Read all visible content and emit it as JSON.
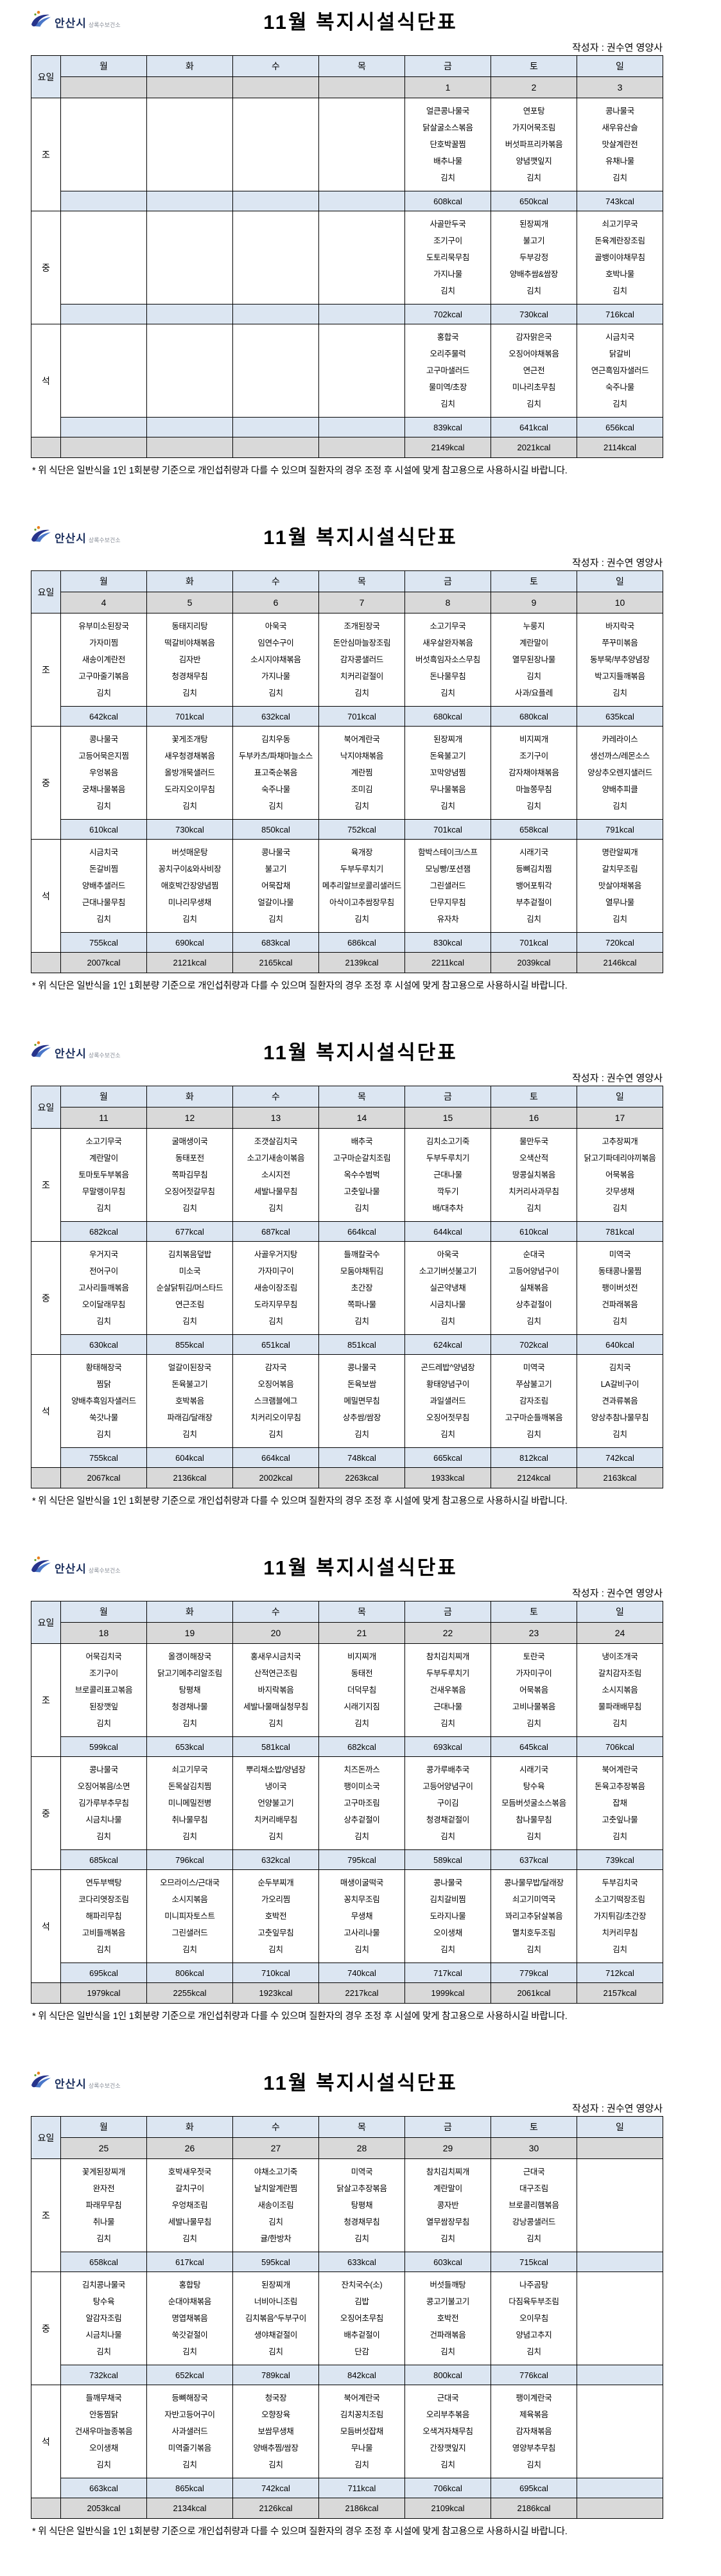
{
  "page": {
    "logo_city": "안산시",
    "logo_sub": "상록수보건소",
    "title": "11월 복지시설식단표",
    "author": "작성자 : 권수연 영양사",
    "day_col_label": "요일",
    "day_names": [
      "월",
      "화",
      "수",
      "목",
      "금",
      "토",
      "일"
    ],
    "meal_labels": [
      "조",
      "중",
      "석"
    ],
    "footnote": "* 위 식단은 일반식을 1인 1회분량 기준으로 개인섭취량과 다를 수 있으며 질환자의 경우 조정 후 시설에 맞게 참고용으로 사용하시길 바랍니다.",
    "colors": {
      "header_blue": "#dce6f2",
      "date_gray": "#d9d9d9",
      "logo_navy": "#27348b",
      "logo_orange": "#e8821e"
    }
  },
  "weeks": [
    {
      "dates": [
        "",
        "",
        "",
        "",
        "1",
        "2",
        "3"
      ],
      "meals": [
        {
          "menus": [
            [],
            [],
            [],
            [],
            [
              "얼큰콩나물국",
              "닭살굴소스볶음",
              "단호박꿀찜",
              "배추나물",
              "김치"
            ],
            [
              "연포탕",
              "가지어묵조림",
              "버섯파프리카볶음",
              "양념깻잎지",
              "김치"
            ],
            [
              "콩나물국",
              "새우유산슬",
              "맛살계란전",
              "유채나물",
              "김치"
            ]
          ],
          "kcal": [
            "",
            "",
            "",
            "",
            "608kcal",
            "650kcal",
            "743kcal"
          ]
        },
        {
          "menus": [
            [],
            [],
            [],
            [],
            [
              "사골만두국",
              "조기구이",
              "도토리묵무침",
              "가지나물",
              "김치"
            ],
            [
              "된장찌개",
              "불고기",
              "두부강정",
              "양배추쌈&쌈장",
              "김치"
            ],
            [
              "쇠고기무국",
              "돈육계란장조림",
              "골뱅이야채무침",
              "호박나물",
              "김치"
            ]
          ],
          "kcal": [
            "",
            "",
            "",
            "",
            "702kcal",
            "730kcal",
            "716kcal"
          ]
        },
        {
          "menus": [
            [],
            [],
            [],
            [],
            [
              "홍합국",
              "오리주물럭",
              "고구마샐러드",
              "물미역/초장",
              "김치"
            ],
            [
              "감자맑은국",
              "오징어야채볶음",
              "연근전",
              "미나리초무침",
              "김치"
            ],
            [
              "시금치국",
              "닭갈비",
              "연근흑임자샐러드",
              "숙주나물",
              "김치"
            ]
          ],
          "kcal": [
            "",
            "",
            "",
            "",
            "839kcal",
            "641kcal",
            "656kcal"
          ]
        }
      ],
      "totals": [
        "",
        "",
        "",
        "",
        "2149kcal",
        "2021kcal",
        "2114kcal"
      ]
    },
    {
      "dates": [
        "4",
        "5",
        "6",
        "7",
        "8",
        "9",
        "10"
      ],
      "meals": [
        {
          "menus": [
            [
              "유부미소된장국",
              "가자미찜",
              "새송이계란전",
              "고구마줄기볶음",
              "김치"
            ],
            [
              "동태지리탕",
              "떡갈비야채볶음",
              "김자반",
              "청경채무침",
              "김치"
            ],
            [
              "아욱국",
              "임연수구이",
              "소시지야채볶음",
              "가지나물",
              "김치"
            ],
            [
              "조개된장국",
              "돈안심마늘장조림",
              "감자콩샐러드",
              "치커리겉절이",
              "김치"
            ],
            [
              "소고기무국",
              "새우살완자볶음",
              "버섯흑임자소스무침",
              "돈나물무침",
              "김치"
            ],
            [
              "누룽지",
              "계란말이",
              "열무된장나물",
              "김치",
              "사과/요플레"
            ],
            [
              "바지락국",
              "쭈꾸미볶음",
              "동부묵/부추양념장",
              "박고지들깨볶음",
              "김치"
            ]
          ],
          "kcal": [
            "642kcal",
            "701kcal",
            "632kcal",
            "701kcal",
            "680kcal",
            "680kcal",
            "635kcal"
          ]
        },
        {
          "menus": [
            [
              "콩나물국",
              "고등어묵은지찜",
              "우엉볶음",
              "궁채나물볶음",
              "김치"
            ],
            [
              "꽃게조개탕",
              "새우청경채볶음",
              "올방개묵샐러드",
              "도라지오이무침",
              "김치"
            ],
            [
              "김치우동",
              "두부카츠/파채마늘소스",
              "표고죽순볶음",
              "숙주나물",
              "김치"
            ],
            [
              "북어계란국",
              "낙지야채볶음",
              "계란찜",
              "조미김",
              "김치"
            ],
            [
              "된장찌개",
              "돈육불고기",
              "꼬막양념찜",
              "무나물볶음",
              "김치"
            ],
            [
              "비지찌개",
              "조기구이",
              "감자채야채볶음",
              "마늘쫑무침",
              "김치"
            ],
            [
              "카레라이스",
              "생선까스/레몬소스",
              "양상추오렌지샐러드",
              "양배추피클",
              "김치"
            ]
          ],
          "kcal": [
            "610kcal",
            "730kcal",
            "850kcal",
            "752kcal",
            "701kcal",
            "658kcal",
            "791kcal"
          ]
        },
        {
          "menus": [
            [
              "시금치국",
              "돈갈비찜",
              "양배추샐러드",
              "근대나물무침",
              "김치"
            ],
            [
              "버섯매운탕",
              "꽁치구이&와사비장",
              "애호박간장양념찜",
              "미나리무생채",
              "김치"
            ],
            [
              "콩나물국",
              "불고기",
              "어묵잡채",
              "얼갈이나물",
              "김치"
            ],
            [
              "육개장",
              "두부두루치기",
              "메추리알브로콜리샐러드",
              "아삭이고추쌈장무침",
              "김치"
            ],
            [
              "함박스테이크/스프",
              "모닝빵/포션잼",
              "그린샐러드",
              "단무지무침",
              "유자차"
            ],
            [
              "시래기국",
              "등뼈김치찜",
              "뱅어포튀각",
              "부추겉절이",
              "김치"
            ],
            [
              "명란알찌개",
              "갈치무조림",
              "맛살야채볶음",
              "열무나물",
              "김치"
            ]
          ],
          "kcal": [
            "755kcal",
            "690kcal",
            "683kcal",
            "686kcal",
            "830kcal",
            "701kcal",
            "720kcal"
          ]
        }
      ],
      "totals": [
        "2007kcal",
        "2121kcal",
        "2165kcal",
        "2139kcal",
        "2211kcal",
        "2039kcal",
        "2146kcal"
      ]
    },
    {
      "dates": [
        "11",
        "12",
        "13",
        "14",
        "15",
        "16",
        "17"
      ],
      "meals": [
        {
          "menus": [
            [
              "소고기무국",
              "계란말이",
              "토마토두부볶음",
              "무말랭이무침",
              "김치"
            ],
            [
              "굴매생이국",
              "동태포전",
              "쪽파김무침",
              "오징어젓갈무침",
              "김치"
            ],
            [
              "조갯살김치국",
              "소고기새송이볶음",
              "소시지전",
              "세발나물무침",
              "김치"
            ],
            [
              "배추국",
              "고구마순갈치조림",
              "옥수수범벅",
              "고춧잎나물",
              "김치"
            ],
            [
              "김치소고기죽",
              "두부두루치기",
              "근대나물",
              "깍두기",
              "배/대추차"
            ],
            [
              "물만두국",
              "오색산적",
              "땅콩실치볶음",
              "치커리사과무침",
              "김치"
            ],
            [
              "고추장찌개",
              "닭고기파데리야끼볶음",
              "어묵볶음",
              "갓무생채",
              "김치"
            ]
          ],
          "kcal": [
            "682kcal",
            "677kcal",
            "687kcal",
            "664kcal",
            "644kcal",
            "610kcal",
            "781kcal"
          ]
        },
        {
          "menus": [
            [
              "우거지국",
              "전어구이",
              "고사리들깨볶음",
              "오이달래무침",
              "김치"
            ],
            [
              "김치볶음덮밥",
              "미소국",
              "순살닭튀김/머스타드",
              "연근조림",
              "김치"
            ],
            [
              "사골우거지탕",
              "가자미구이",
              "새송이장조림",
              "도라지무무침",
              "김치"
            ],
            [
              "들깨칼국수",
              "모둠야채튀김",
              "초간장",
              "쪽파나물",
              "김치"
            ],
            [
              "아욱국",
              "소고기버섯불고기",
              "실곤약냉채",
              "시금치나물",
              "김치"
            ],
            [
              "순대국",
              "고등어양념구이",
              "실채볶음",
              "상추겉절이",
              "김치"
            ],
            [
              "미역국",
              "동태콩나물찜",
              "팽이버섯전",
              "건파래볶음",
              "김치"
            ]
          ],
          "kcal": [
            "630kcal",
            "855kcal",
            "651kcal",
            "851kcal",
            "624kcal",
            "702kcal",
            "640kcal"
          ]
        },
        {
          "menus": [
            [
              "황태해장국",
              "찜닭",
              "양배추흑임자샐러드",
              "쑥갓나물",
              "김치"
            ],
            [
              "얼갈이된장국",
              "돈육불고기",
              "호박볶음",
              "파래김/달래장",
              "김치"
            ],
            [
              "감자국",
              "오징어볶음",
              "스크램블에그",
              "치커리오이무침",
              "김치"
            ],
            [
              "콩나물국",
              "돈육보쌈",
              "메밀면무침",
              "상추쌈/쌈장",
              "김치"
            ],
            [
              "곤드레밥^양념장",
              "황태양념구이",
              "과일샐러드",
              "오징어젓무침",
              "김치"
            ],
            [
              "미역국",
              "쭈삼불고기",
              "감자조림",
              "고구마순들깨볶음",
              "김치"
            ],
            [
              "김치국",
              "LA갈비구이",
              "견과류볶음",
              "양상추참나물무침",
              "김치"
            ]
          ],
          "kcal": [
            "755kcal",
            "604kcal",
            "664kcal",
            "748kcal",
            "665kcal",
            "812kcal",
            "742kcal"
          ]
        }
      ],
      "totals": [
        "2067kcal",
        "2136kcal",
        "2002kcal",
        "2263kcal",
        "1933kcal",
        "2124kcal",
        "2163kcal"
      ]
    },
    {
      "dates": [
        "18",
        "19",
        "20",
        "21",
        "22",
        "23",
        "24"
      ],
      "meals": [
        {
          "menus": [
            [
              "어묵김치국",
              "조기구이",
              "브로콜리표고볶음",
              "된장깻잎",
              "김치"
            ],
            [
              "올갱이해장국",
              "닭고기메추리알조림",
              "탕평채",
              "청경채나물",
              "김치"
            ],
            [
              "홍새우시금치국",
              "산적연근조림",
              "바지락볶음",
              "세발나물매실청무침",
              "김치"
            ],
            [
              "비지찌개",
              "동태전",
              "더덕무침",
              "시래기지짐",
              "김치"
            ],
            [
              "참치김치찌개",
              "두부두루치기",
              "건새우볶음",
              "근대나물",
              "김치"
            ],
            [
              "토란국",
              "가자미구이",
              "어묵볶음",
              "고비나물볶음",
              "김치"
            ],
            [
              "냉이조개국",
              "갈치감자조림",
              "소시지볶음",
              "물파래배무침",
              "김치"
            ]
          ],
          "kcal": [
            "599kcal",
            "653kcal",
            "581kcal",
            "682kcal",
            "693kcal",
            "645kcal",
            "706kcal"
          ]
        },
        {
          "menus": [
            [
              "콩나물국",
              "오징어볶음/소면",
              "김가루부추무침",
              "시금치나물",
              "김치"
            ],
            [
              "쇠고기무국",
              "돈목살김치찜",
              "미니메밀전병",
              "취나물무침",
              "김치"
            ],
            [
              "뿌리채소밥/양념장",
              "냉이국",
              "언양불고기",
              "치커리배무침",
              "김치"
            ],
            [
              "치즈돈까스",
              "팽이미소국",
              "고구마조림",
              "상추겉절이",
              "김치"
            ],
            [
              "콩가루배추국",
              "고등어양념구이",
              "구이김",
              "청경채겉절이",
              "김치"
            ],
            [
              "시래기국",
              "탕수육",
              "모듬버섯굴소스볶음",
              "참나물무침",
              "김치"
            ],
            [
              "북어계란국",
              "돈육고추장볶음",
              "잡채",
              "고춧잎나물",
              "김치"
            ]
          ],
          "kcal": [
            "685kcal",
            "796kcal",
            "632kcal",
            "795kcal",
            "589kcal",
            "637kcal",
            "739kcal"
          ]
        },
        {
          "menus": [
            [
              "연두부백탕",
              "코다리엿장조림",
              "해파리무침",
              "고비들깨볶음",
              "김치"
            ],
            [
              "오므라이스/근대국",
              "소시지볶음",
              "미니피자토스트",
              "그린샐러드",
              "김치"
            ],
            [
              "순두부찌개",
              "가오리찜",
              "호박전",
              "고춧잎무침",
              "김치"
            ],
            [
              "매생이굴떡국",
              "꽁치무조림",
              "무생채",
              "고사리나물",
              "김치"
            ],
            [
              "콩나물국",
              "김치갈비찜",
              "도라지나물",
              "오이생채",
              "김치"
            ],
            [
              "콩나물무밥/달래장",
              "쇠고기미역국",
              "꽈리고추닭살볶음",
              "멸치호두조림",
              "김치"
            ],
            [
              "두부김치국",
              "소고기떡장조림",
              "가지튀김/초간장",
              "치커리무침",
              "김치"
            ]
          ],
          "kcal": [
            "695kcal",
            "806kcal",
            "710kcal",
            "740kcal",
            "717kcal",
            "779kcal",
            "712kcal"
          ]
        }
      ],
      "totals": [
        "1979kcal",
        "2255kcal",
        "1923kcal",
        "2217kcal",
        "1999kcal",
        "2061kcal",
        "2157kcal"
      ]
    },
    {
      "dates": [
        "25",
        "26",
        "27",
        "28",
        "29",
        "30",
        ""
      ],
      "meals": [
        {
          "menus": [
            [
              "꽃게된장찌개",
              "완자전",
              "파래무무침",
              "취나물",
              "김치"
            ],
            [
              "호박새우젓국",
              "갈치구이",
              "우엉채조림",
              "세발나물무침",
              "김치"
            ],
            [
              "야채소고기죽",
              "날치알계란찜",
              "새송이조림",
              "김치",
              "귤/한방차"
            ],
            [
              "미역국",
              "닭살고추장볶음",
              "탕평채",
              "청경채무침",
              "김치"
            ],
            [
              "참치김치찌개",
              "계란말이",
              "콩자반",
              "열무쌈장무침",
              "김치"
            ],
            [
              "근대국",
              "대구조림",
              "브로콜리햄볶음",
              "강낭콩샐러드",
              "김치"
            ],
            []
          ],
          "kcal": [
            "658kcal",
            "617kcal",
            "595kcal",
            "633kcal",
            "603kcal",
            "715kcal",
            ""
          ]
        },
        {
          "menus": [
            [
              "김치콩나물국",
              "탕수육",
              "알감자조림",
              "시금치나물",
              "김치"
            ],
            [
              "홍합탕",
              "순대야채볶음",
              "명엽채볶음",
              "쑥갓겉절이",
              "김치"
            ],
            [
              "된장찌개",
              "너비아니조림",
              "김치볶음^두부구이",
              "생야채겉절이",
              "김치"
            ],
            [
              "잔치국수(소)",
              "김밥",
              "오징어초무침",
              "배추겉절이",
              "단감"
            ],
            [
              "버섯들깨탕",
              "콩고기불고기",
              "호박전",
              "건파래볶음",
              "김치"
            ],
            [
              "나주곰탕",
              "다짐육두부조림",
              "오이무침",
              "양념고추지",
              "김치"
            ],
            []
          ],
          "kcal": [
            "732kcal",
            "652kcal",
            "789kcal",
            "842kcal",
            "800kcal",
            "776kcal",
            ""
          ]
        },
        {
          "menus": [
            [
              "들깨무채국",
              "안동찜닭",
              "건새우마늘종볶음",
              "오이생채",
              "김치"
            ],
            [
              "등뼈해장국",
              "자반고등어구이",
              "사과샐러드",
              "미역줄기볶음",
              "김치"
            ],
            [
              "청국장",
              "오향장육",
              "보쌈무생채",
              "양배추찜/쌈장",
              "김치"
            ],
            [
              "북어계란국",
              "김치꽁치조림",
              "모듬버섯잡채",
              "무나물",
              "김치"
            ],
            [
              "근대국",
              "오리부추볶음",
              "오색겨자채무침",
              "간장깻잎지",
              "김치"
            ],
            [
              "팽이계란국",
              "제육볶음",
              "감자채볶음",
              "영양부추무침",
              "김치"
            ],
            []
          ],
          "kcal": [
            "663kcal",
            "865kcal",
            "742kcal",
            "711kcal",
            "706kcal",
            "695kcal",
            ""
          ]
        }
      ],
      "totals": [
        "2053kcal",
        "2134kcal",
        "2126kcal",
        "2186kcal",
        "2109kcal",
        "2186kcal",
        ""
      ]
    }
  ]
}
